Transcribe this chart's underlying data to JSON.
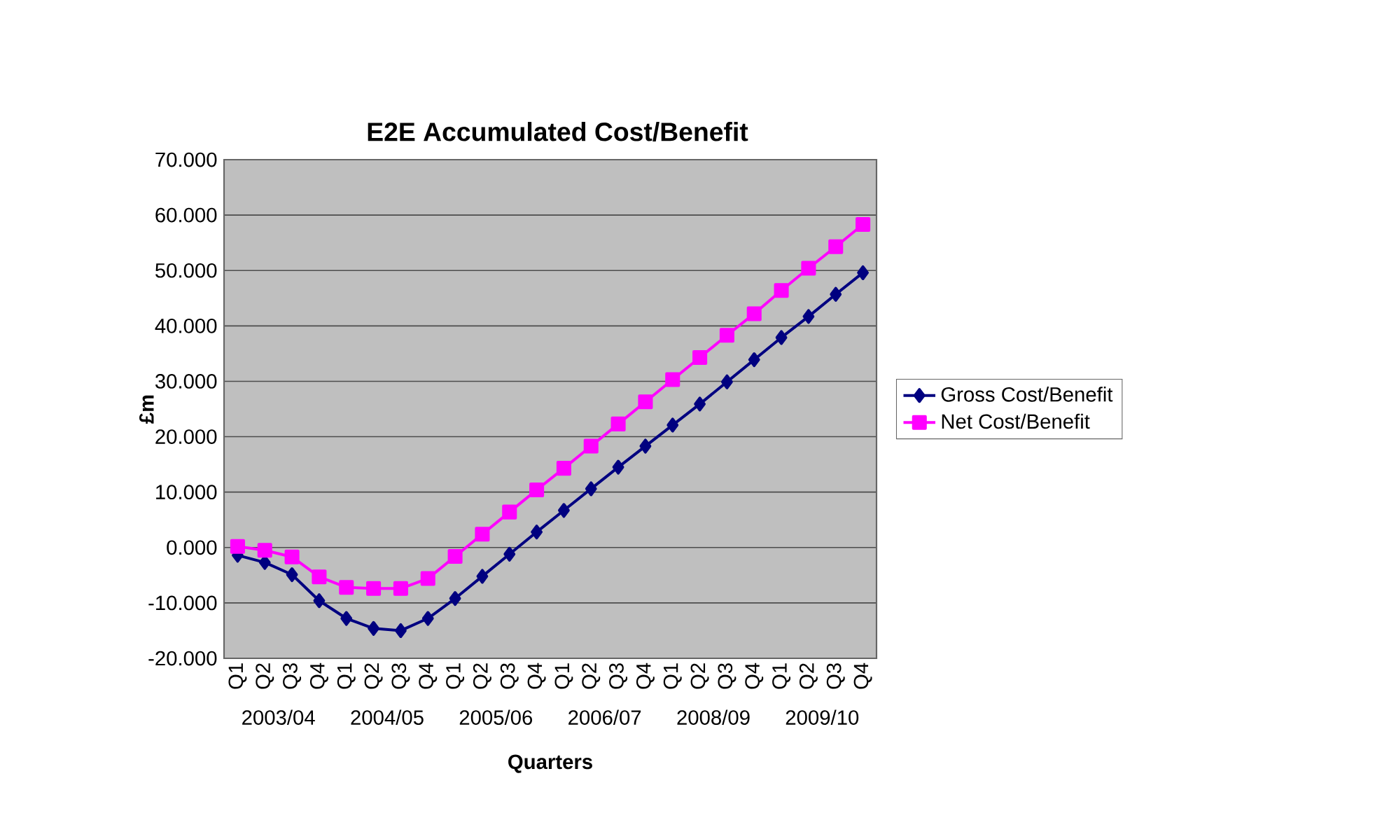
{
  "chart_data": {
    "type": "line",
    "title": "E2E Accumulated Cost/Benefit",
    "xlabel": "Quarters",
    "ylabel": "£m",
    "categories": [
      "Q1",
      "Q2",
      "Q3",
      "Q4",
      "Q1",
      "Q2",
      "Q3",
      "Q4",
      "Q1",
      "Q2",
      "Q3",
      "Q4",
      "Q1",
      "Q2",
      "Q3",
      "Q4",
      "Q1",
      "Q2",
      "Q3",
      "Q4",
      "Q1",
      "Q2",
      "Q3",
      "Q4"
    ],
    "annotations": [
      "2003/04",
      "2004/05",
      "2005/06",
      "2006/07",
      "2008/09",
      "2009/10"
    ],
    "series": [
      {
        "name": "Gross Cost/Benefit",
        "color": "#000080",
        "marker": "diamond",
        "values": [
          -1.4,
          -2.7,
          -4.9,
          -9.6,
          -12.8,
          -14.6,
          -15.0,
          -12.8,
          -9.2,
          -5.2,
          -1.2,
          2.8,
          6.7,
          10.6,
          14.5,
          18.3,
          22.1,
          25.9,
          29.9,
          33.9,
          37.9,
          41.7,
          45.7,
          49.6
        ]
      },
      {
        "name": "Net Cost/Benefit",
        "color": "#ff00ff",
        "marker": "square",
        "values": [
          0.2,
          -0.5,
          -1.7,
          -5.3,
          -7.2,
          -7.4,
          -7.4,
          -5.6,
          -1.6,
          2.4,
          6.4,
          10.4,
          14.3,
          18.3,
          22.3,
          26.3,
          30.3,
          34.3,
          38.3,
          42.2,
          46.4,
          50.4,
          54.3,
          58.3
        ]
      }
    ],
    "ylim": [
      -20,
      70
    ],
    "yticks": [
      {
        "value": -20,
        "label": "-20.000"
      },
      {
        "value": -10,
        "label": "-10.000"
      },
      {
        "value": 0,
        "label": "0.000"
      },
      {
        "value": 10,
        "label": "10.000"
      },
      {
        "value": 20,
        "label": "20.000"
      },
      {
        "value": 30,
        "label": "30.000"
      },
      {
        "value": 40,
        "label": "40.000"
      },
      {
        "value": 50,
        "label": "50.000"
      },
      {
        "value": 60,
        "label": "60.000"
      },
      {
        "value": 70,
        "label": "70.000"
      }
    ],
    "grid": "y",
    "legend": "right",
    "line_style": "solid"
  }
}
